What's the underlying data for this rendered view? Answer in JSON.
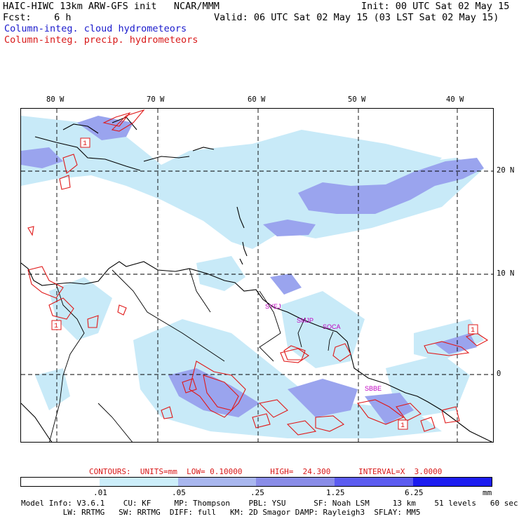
{
  "header": {
    "title_left": "HAIC-HIWC 13km ARW-GFS init   NCAR/MMM",
    "fcst": "Fcst:    6 h",
    "init": "Init: 00 UTC Sat 02 May 15",
    "valid": "Valid: 06 UTC Sat 02 May 15 (03 LST Sat 02 May 15)",
    "field1": "Column-integ. cloud hydrometeors",
    "field2": "Column-integ. precip. hydrometeors"
  },
  "map": {
    "lon_labels": [
      "80 W",
      "70 W",
      "60 W",
      "50 W",
      "40 W"
    ],
    "lat_labels": [
      "20 N",
      "10 N",
      "0"
    ],
    "station_labels": [
      "SYEJ",
      "SMJP",
      "SOCA",
      "SBBE"
    ],
    "contour_labels": [
      "1",
      "1",
      "1",
      "1"
    ],
    "colors": {
      "cloud_light": "#c8eaf8",
      "cloud_mid": "#9aa4ee",
      "precip": "#e01818",
      "station": "#c000c0"
    }
  },
  "legend": {
    "contours_info": "CONTOURS:  UNITS=mm  LOW= 0.10000      HIGH=  24.300      INTERVAL=X  3.0000",
    "scale_labels": [
      ".01",
      ".05",
      ".25",
      "1.25",
      "6.25"
    ],
    "units": "mm",
    "scale_colors": [
      "#ffffff",
      "#cceefa",
      "#a9b7ef",
      "#8a8de8",
      "#5c5cf0",
      "#1c1cf0"
    ]
  },
  "footer": {
    "line1": "Model Info: V3.6.1    CU: KF     MP: Thompson    PBL: YSU      SF: Noah LSM     13 km    51 levels   60 sec",
    "line2": "         LW: RRTMG   SW: RRTMG  DIFF: full   KM: 2D Smagor DAMP: Rayleigh3  SFLAY: MM5"
  }
}
